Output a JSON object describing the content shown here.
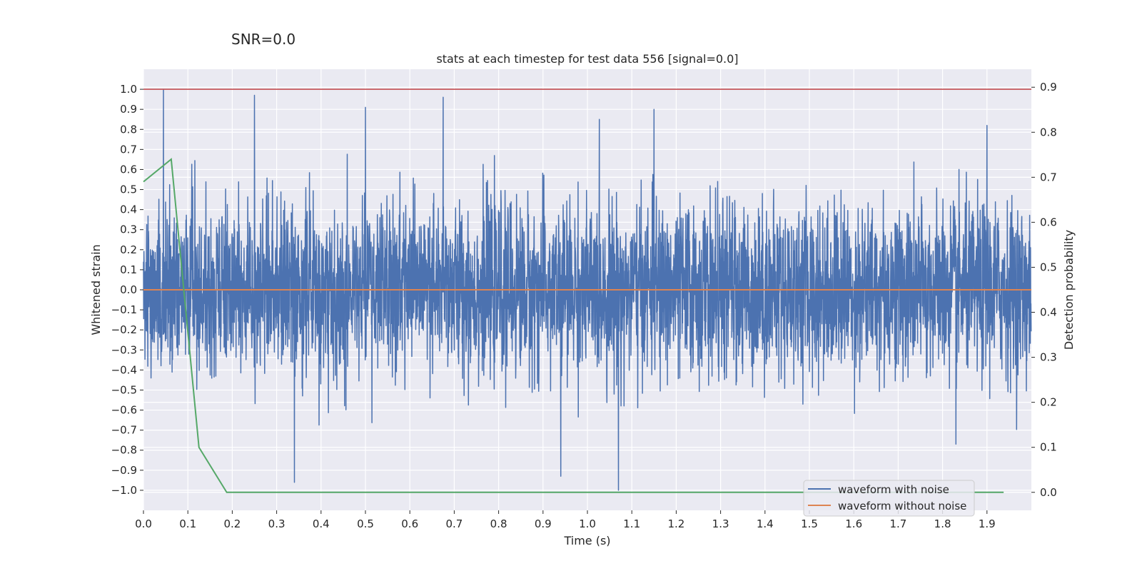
{
  "chart_data": {
    "type": "line",
    "suptitle": "SNR=0.0",
    "title": "stats at each timestep for test data 556 [signal=0.0]",
    "xlabel": "Time (s)",
    "ylabel": "Whitened strain",
    "ylabel_right": "Detection probability",
    "xlim": [
      0.0,
      2.0
    ],
    "ylim": [
      -1.1,
      1.1
    ],
    "ylim_right": [
      -0.04,
      0.94
    ],
    "x_ticks": [
      0.0,
      0.1,
      0.2,
      0.3,
      0.4,
      0.5,
      0.6,
      0.7,
      0.8,
      0.9,
      1.0,
      1.1,
      1.2,
      1.3,
      1.4,
      1.5,
      1.6,
      1.7,
      1.8,
      1.9
    ],
    "x_tick_labels": [
      "0.0",
      "0.1",
      "0.2",
      "0.3",
      "0.4",
      "0.5",
      "0.6",
      "0.7",
      "0.8",
      "0.9",
      "1.0",
      "1.1",
      "1.2",
      "1.3",
      "1.4",
      "1.5",
      "1.6",
      "1.7",
      "1.8",
      "1.9"
    ],
    "y_ticks": [
      1.0,
      0.9,
      0.8,
      0.7,
      0.6,
      0.5,
      0.4,
      0.3,
      0.2,
      0.1,
      0.0,
      -0.1,
      -0.2,
      -0.3,
      -0.4,
      -0.5,
      -0.6,
      -0.7,
      -0.8,
      -0.9,
      -1.0
    ],
    "y_tick_labels": [
      "1.0",
      "0.9",
      "0.8",
      "0.7",
      "0.6",
      "0.5",
      "0.4",
      "0.3",
      "0.2",
      "0.1",
      "0.0",
      "−0.1",
      "−0.2",
      "−0.3",
      "−0.4",
      "−0.5",
      "−0.6",
      "−0.7",
      "−0.8",
      "−0.9",
      "−1.0"
    ],
    "y_right_ticks": [
      0.9,
      0.8,
      0.7,
      0.6,
      0.5,
      0.4,
      0.3,
      0.2,
      0.1,
      0.0
    ],
    "y_right_tick_labels": [
      "0.9",
      "0.8",
      "0.7",
      "0.6",
      "0.5",
      "0.4",
      "0.3",
      "0.2",
      "0.1",
      "0.0"
    ],
    "grid": true,
    "legend_placement": "lower-right",
    "series": [
      {
        "name": "waveform with noise",
        "color": "#4c72b0",
        "axis": "left",
        "style": "dense noise trace (random samples, approx. ±0.2 std), peaks near 1.0 at t≈0.045 and −1.0 at t≈1.07",
        "notable_points": [
          {
            "x": 0.045,
            "y": 1.0
          },
          {
            "x": 0.25,
            "y": 0.97
          },
          {
            "x": 0.34,
            "y": -0.96
          },
          {
            "x": 0.675,
            "y": 0.96
          },
          {
            "x": 0.5,
            "y": 0.91
          },
          {
            "x": 1.15,
            "y": 0.9
          },
          {
            "x": 1.07,
            "y": -1.0
          },
          {
            "x": 0.94,
            "y": -0.93
          },
          {
            "x": 1.9,
            "y": 0.82
          },
          {
            "x": 1.83,
            "y": -0.77
          }
        ]
      },
      {
        "name": "waveform without noise",
        "color": "#dd8452",
        "axis": "left",
        "x": [
          0.0,
          2.0
        ],
        "y": [
          0.0,
          0.0
        ]
      },
      {
        "name": "",
        "color": "#55a868",
        "axis": "right",
        "x": [
          0.0,
          0.0625,
          0.125,
          0.1875,
          0.25,
          0.5,
          0.75,
          1.0,
          1.25,
          1.5,
          1.75,
          1.9375
        ],
        "y": [
          0.69,
          0.74,
          0.1,
          0.0,
          0.0,
          0.0,
          0.0,
          0.0,
          0.0,
          0.0,
          0.0,
          0.0
        ]
      },
      {
        "name": "",
        "color": "#c44e52",
        "axis": "left",
        "x": [
          0.0,
          2.0
        ],
        "y": [
          1.0,
          1.0
        ]
      }
    ]
  }
}
